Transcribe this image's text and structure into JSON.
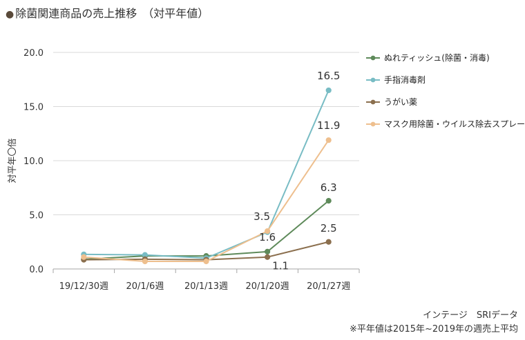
{
  "title": "除菌関連商品の売上推移　（対平年値）",
  "source_line1": "インテージ　SRIデータ",
  "source_line2": "※平年値は2015年~2019年の週売上平均",
  "chart_data": {
    "type": "line",
    "title": "除菌関連商品の売上推移　（対平年値）",
    "xlabel": "",
    "ylabel": "対平年〇倍",
    "ylim": [
      0,
      20
    ],
    "yticks": [
      "0.0",
      "5.0",
      "10.0",
      "15.0",
      "20.0"
    ],
    "categories": [
      "19/12/30週",
      "20/1/6週",
      "20/1/13週",
      "20/1/20週",
      "20/1/27週"
    ],
    "grid": true,
    "legend": "right",
    "series": [
      {
        "name": "ぬれティッシュ(除菌・消毒)",
        "color": "#5e8a5a",
        "values": [
          0.9,
          1.2,
          1.2,
          1.6,
          6.3
        ]
      },
      {
        "name": "手指消毒剤",
        "color": "#78bcc4",
        "values": [
          1.35,
          1.3,
          1.0,
          3.4,
          16.5
        ]
      },
      {
        "name": "うがい薬",
        "color": "#8b6f4e",
        "values": [
          0.85,
          0.9,
          0.85,
          1.1,
          2.5
        ]
      },
      {
        "name": "マスク用除菌・ウイルス除去スプレー",
        "color": "#eebf8e",
        "values": [
          1.1,
          0.7,
          0.7,
          3.5,
          11.9
        ]
      }
    ],
    "data_labels": [
      {
        "text": "16.5",
        "series": 1,
        "index": 4
      },
      {
        "text": "11.9",
        "series": 3,
        "index": 4
      },
      {
        "text": "6.3",
        "series": 0,
        "index": 4
      },
      {
        "text": "2.5",
        "series": 2,
        "index": 4
      },
      {
        "text": "3.5",
        "series": 3,
        "index": 3
      },
      {
        "text": "1.6",
        "series": 0,
        "index": 3
      },
      {
        "text": "1.1",
        "series": 2,
        "index": 3
      }
    ]
  }
}
